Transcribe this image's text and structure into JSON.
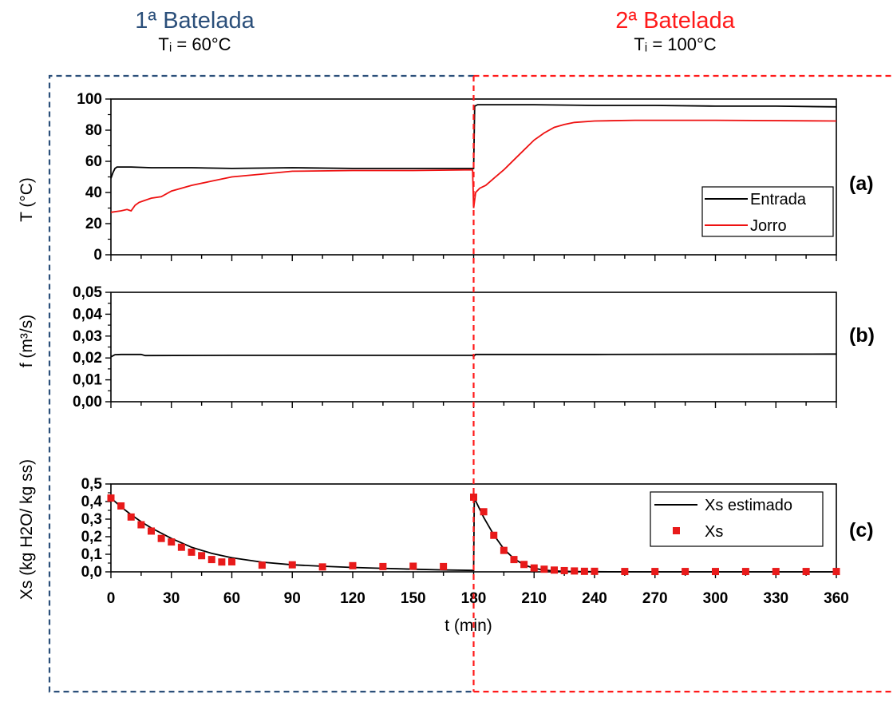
{
  "headers": [
    {
      "title": "1ª Batelada",
      "subtitle": "Tᵢ = 60°C",
      "color": "#2b4f7a"
    },
    {
      "title": "2ª Batelada",
      "subtitle": "Tᵢ = 100°C",
      "color": "#ff1a1a"
    }
  ],
  "x_label": "t (min)",
  "x_ticks": [
    "0",
    "30",
    "60",
    "90",
    "120",
    "150",
    "180",
    "210",
    "240",
    "270",
    "300",
    "330",
    "360"
  ],
  "chart_data": [
    {
      "panel": "(a)",
      "type": "line",
      "ylabel": "T (°C)",
      "xlim": [
        0,
        360
      ],
      "ylim": [
        0,
        110
      ],
      "yticks": [
        "0",
        "20",
        "40",
        "60",
        "80",
        "100"
      ],
      "legend_position": "bottom-right",
      "series": [
        {
          "name": "Entrada",
          "color": "#000000",
          "x": [
            0,
            1,
            2,
            3,
            5,
            10,
            20,
            40,
            60,
            90,
            120,
            150,
            179.5,
            180,
            180.5,
            182,
            190,
            210,
            240,
            270,
            300,
            330,
            360
          ],
          "y": [
            54,
            58,
            61,
            62,
            62,
            62,
            61.5,
            61.5,
            61,
            61.5,
            61,
            61,
            61,
            61,
            105,
            106,
            106,
            106,
            105.5,
            105.5,
            105,
            105,
            104.5
          ]
        },
        {
          "name": "Jorro",
          "color": "#ee1111",
          "x": [
            0,
            5,
            8,
            10,
            12,
            14,
            16,
            20,
            25,
            30,
            40,
            50,
            60,
            75,
            90,
            120,
            150,
            179.5,
            180,
            181,
            183,
            186,
            190,
            195,
            200,
            205,
            210,
            215,
            220,
            225,
            230,
            240,
            260,
            300,
            360
          ],
          "y": [
            30,
            31,
            32,
            31,
            35,
            37,
            38,
            40,
            41,
            45,
            49,
            52,
            55,
            57,
            59,
            59.5,
            59.5,
            60,
            33,
            44,
            47,
            49,
            54,
            60,
            67,
            74,
            81,
            86,
            90,
            92,
            93.5,
            94.5,
            95,
            95,
            94.5
          ]
        }
      ]
    },
    {
      "panel": "(b)",
      "type": "line",
      "ylabel": "f (m³/s)",
      "xlim": [
        0,
        360
      ],
      "ylim": [
        0,
        0.05
      ],
      "yticks": [
        "0,00",
        "0,01",
        "0,02",
        "0,03",
        "0,04",
        "0,05"
      ],
      "series": [
        {
          "color": "#000000",
          "x": [
            0,
            2,
            5,
            15,
            17,
            60,
            120,
            179.5,
            180,
            181,
            240,
            300,
            360
          ],
          "y": [
            0.0205,
            0.0215,
            0.0216,
            0.0216,
            0.0211,
            0.0212,
            0.0212,
            0.0212,
            0.0207,
            0.0216,
            0.0216,
            0.0217,
            0.0218
          ]
        }
      ]
    },
    {
      "panel": "(c)",
      "type": "scatter+line",
      "ylabel": "Xs (kg H2O/ kg ss)",
      "xlim": [
        0,
        360
      ],
      "ylim": [
        0,
        0.5
      ],
      "yticks": [
        "0,0",
        "0,1",
        "0,2",
        "0,3",
        "0,4",
        "0,5"
      ],
      "legend_position": "top-right",
      "series": [
        {
          "name": "Xs estimado",
          "type": "line",
          "color": "#000000",
          "x": [
            0,
            5,
            10,
            15,
            20,
            30,
            40,
            50,
            60,
            75,
            90,
            105,
            120,
            135,
            150,
            165,
            179.5,
            180,
            180.3,
            185,
            190,
            195,
            200,
            205,
            210,
            215,
            220,
            230,
            240,
            270,
            300,
            330,
            360
          ],
          "y": [
            0.42,
            0.37,
            0.325,
            0.285,
            0.25,
            0.19,
            0.14,
            0.105,
            0.08,
            0.055,
            0.04,
            0.032,
            0.025,
            0.02,
            0.015,
            0.011,
            0.008,
            0.008,
            0.42,
            0.31,
            0.21,
            0.13,
            0.075,
            0.04,
            0.02,
            0.01,
            0.005,
            0.002,
            0.001,
            0,
            0,
            0,
            0
          ]
        },
        {
          "name": "Xs",
          "type": "scatter",
          "color": "#e81a1a",
          "x": [
            0,
            5,
            10,
            15,
            20,
            25,
            30,
            35,
            40,
            45,
            50,
            55,
            60,
            75,
            90,
            105,
            120,
            135,
            150,
            165,
            180,
            185,
            190,
            195,
            200,
            205,
            210,
            215,
            220,
            225,
            230,
            235,
            240,
            255,
            270,
            285,
            300,
            315,
            330,
            345,
            360
          ],
          "y": [
            0.42,
            0.375,
            0.312,
            0.268,
            0.232,
            0.19,
            0.17,
            0.14,
            0.112,
            0.092,
            0.07,
            0.056,
            0.057,
            0.038,
            0.04,
            0.028,
            0.035,
            0.03,
            0.032,
            0.03,
            0.425,
            0.342,
            0.208,
            0.122,
            0.07,
            0.042,
            0.022,
            0.015,
            0.01,
            0.007,
            0.005,
            0.003,
            0.003,
            0.002,
            0.002,
            0.002,
            0.002,
            0.002,
            0.002,
            0.002,
            0.002
          ]
        }
      ]
    }
  ]
}
